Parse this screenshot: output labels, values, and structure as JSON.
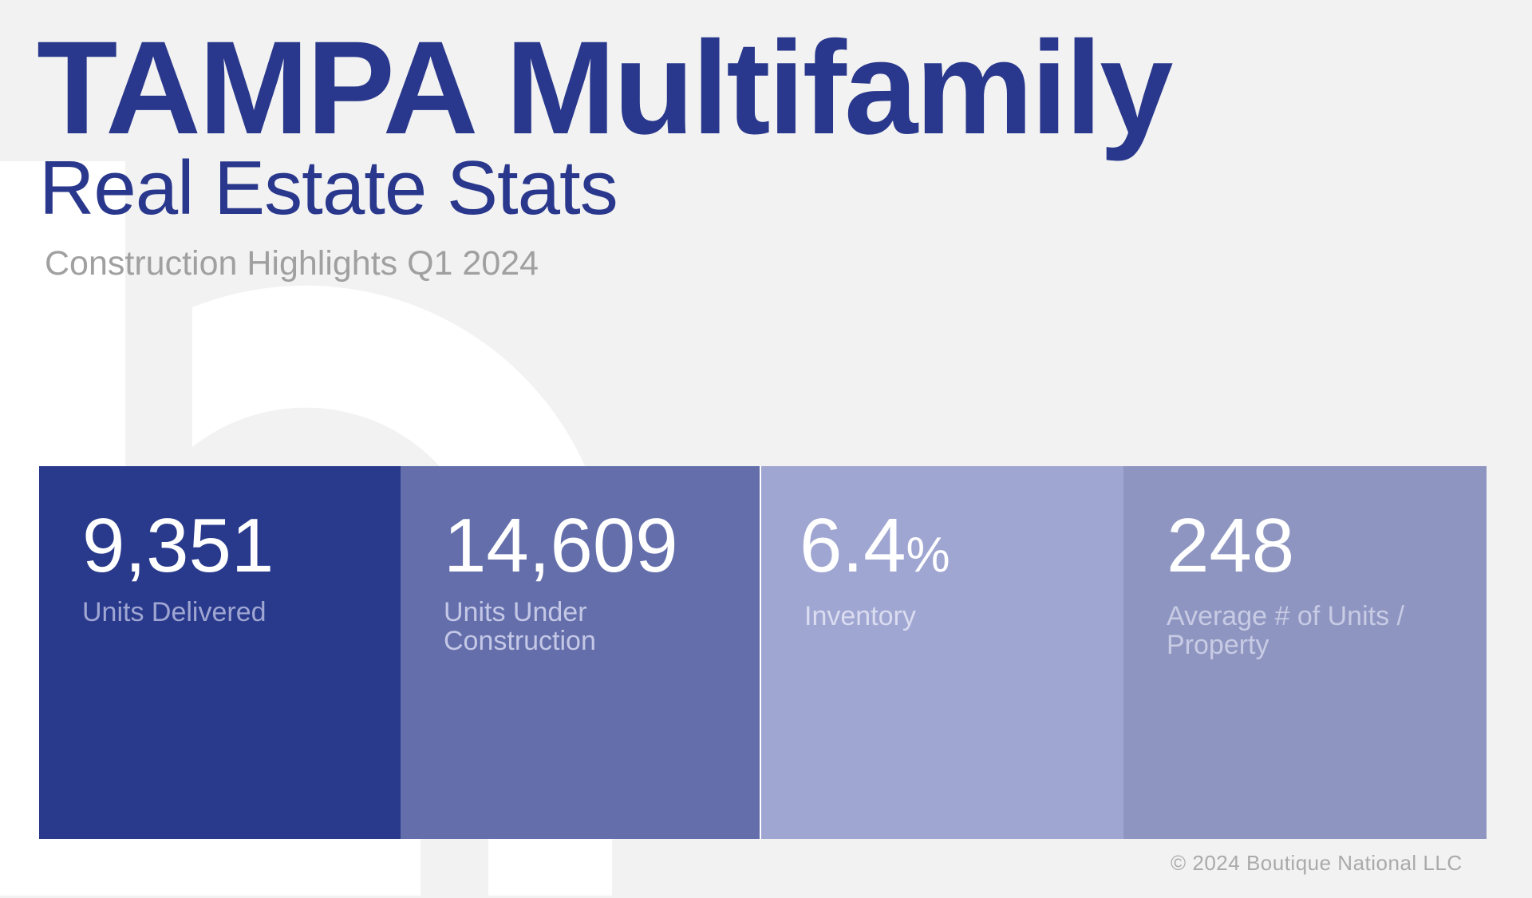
{
  "header": {
    "title": "TAMPA Multifamily",
    "subtitle": "Real Estate Stats",
    "tagline": "Construction Highlights Q1 2024"
  },
  "stats": [
    {
      "value": "9,351",
      "suffix": "",
      "label": "Units Delivered",
      "color": "#293a8c",
      "label_color": "#a0a6d2"
    },
    {
      "value": "14,609",
      "suffix": "",
      "label": "Units Under Construction",
      "color": "#636eab",
      "label_color": "#c4c8e6"
    },
    {
      "value": "6.4",
      "suffix": "%",
      "label": "Inventory",
      "color": "#a0a6d2",
      "label_color": "#dadcf0"
    },
    {
      "value": "248",
      "suffix": "",
      "label": "Average # of Units / Property",
      "color": "#8e95c1",
      "label_color": "#c8cbe4"
    }
  ],
  "footer": {
    "copyright": "© 2024 Boutique National LLC"
  },
  "colors": {
    "brand": "#29388c",
    "background": "#f2f2f2"
  }
}
